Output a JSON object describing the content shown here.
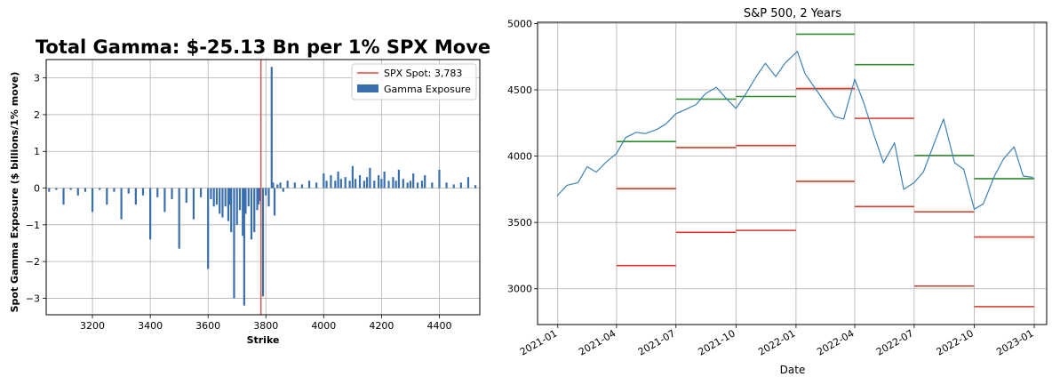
{
  "chart_data": [
    {
      "type": "bar",
      "title": "Total Gamma: $-25.13 Bn per 1% SPX Move",
      "xlabel": "Strike",
      "ylabel": "Spot Gamma Exposure ($ billions/1% move)",
      "xlim": [
        3040,
        4540
      ],
      "ylim": [
        -3.45,
        3.5
      ],
      "xticks": [
        3200,
        3400,
        3600,
        3800,
        4000,
        4200,
        4400
      ],
      "yticks": [
        {
          "value": 3,
          "label": "3"
        },
        {
          "value": 2,
          "label": "2"
        },
        {
          "value": 1,
          "label": "1"
        },
        {
          "value": 0,
          "label": "0"
        },
        {
          "value": -1,
          "label": "−1"
        },
        {
          "value": -2,
          "label": "−2"
        },
        {
          "value": -3,
          "label": "−3"
        }
      ],
      "grid": true,
      "bar_color": "#3a6fae",
      "spot_color": "#e8403a",
      "spot_value": 3783,
      "legend_position": "top-right",
      "legend": [
        {
          "label": "SPX Spot: 3,783",
          "kind": "line",
          "color": "#e8403a"
        },
        {
          "label": "Gamma Exposure",
          "kind": "patch",
          "color": "#3a6fae"
        }
      ],
      "series": [
        {
          "name": "Gamma Exposure",
          "x": [
            3050,
            3075,
            3100,
            3125,
            3150,
            3175,
            3200,
            3225,
            3250,
            3275,
            3300,
            3325,
            3350,
            3375,
            3400,
            3425,
            3450,
            3475,
            3500,
            3525,
            3550,
            3575,
            3600,
            3610,
            3620,
            3630,
            3640,
            3650,
            3660,
            3670,
            3675,
            3680,
            3690,
            3700,
            3710,
            3720,
            3725,
            3730,
            3740,
            3750,
            3760,
            3770,
            3775,
            3780,
            3790,
            3800,
            3810,
            3820,
            3825,
            3830,
            3840,
            3850,
            3860,
            3875,
            3900,
            3925,
            3950,
            3975,
            4000,
            4010,
            4025,
            4040,
            4050,
            4060,
            4075,
            4090,
            4100,
            4110,
            4125,
            4140,
            4150,
            4160,
            4175,
            4190,
            4200,
            4210,
            4225,
            4240,
            4250,
            4260,
            4275,
            4290,
            4300,
            4310,
            4325,
            4340,
            4350,
            4375,
            4400,
            4425,
            4450,
            4475,
            4500,
            4525
          ],
          "values": [
            -0.1,
            -0.05,
            -0.45,
            -0.05,
            -0.2,
            -0.1,
            -0.65,
            -0.05,
            -0.45,
            -0.1,
            -0.85,
            -0.15,
            -0.45,
            -0.2,
            -1.4,
            -0.25,
            -0.65,
            -0.3,
            -1.65,
            -0.4,
            -0.85,
            -0.25,
            -2.2,
            -0.3,
            -0.5,
            -0.45,
            -0.7,
            -0.8,
            -0.5,
            -0.9,
            -0.45,
            -1.2,
            -3.0,
            -1.0,
            -0.6,
            -1.3,
            -3.2,
            -0.7,
            -0.5,
            -1.4,
            -1.2,
            -0.6,
            -0.45,
            -0.35,
            -2.95,
            -0.2,
            -0.5,
            3.3,
            0.15,
            -0.75,
            0.1,
            0.15,
            -0.1,
            0.2,
            0.15,
            0.1,
            0.2,
            0.15,
            0.4,
            0.2,
            0.35,
            0.2,
            0.45,
            0.25,
            0.3,
            0.2,
            0.6,
            0.25,
            0.35,
            0.2,
            0.3,
            0.55,
            0.2,
            0.35,
            0.25,
            0.45,
            0.2,
            0.3,
            0.2,
            0.5,
            0.25,
            0.15,
            0.2,
            0.4,
            0.15,
            0.2,
            0.35,
            0.15,
            0.5,
            0.15,
            0.1,
            0.15,
            0.3,
            0.08
          ]
        }
      ]
    },
    {
      "type": "line",
      "title": "S&P 500, 2 Years",
      "xlabel": "Date",
      "ylabel": "",
      "xlim": [
        "2020-12-01",
        "2023-01-20"
      ],
      "ylim": [
        2730,
        5010
      ],
      "xticks": [
        "2021-01",
        "2021-04",
        "2021-07",
        "2021-10",
        "2022-01",
        "2022-04",
        "2022-07",
        "2022-10",
        "2023-01"
      ],
      "yticks": [
        3000,
        3500,
        4000,
        4500,
        5000
      ],
      "grid": true,
      "line_color": "#3b82b6",
      "upper_color": "#2e8b2e",
      "lower_color": "#d83a26",
      "series": [
        {
          "name": "S&P 500",
          "x": [
            "2020-12-31",
            "2021-01-15",
            "2021-02-01",
            "2021-02-15",
            "2021-03-01",
            "2021-03-15",
            "2021-04-01",
            "2021-04-15",
            "2021-05-01",
            "2021-05-15",
            "2021-06-01",
            "2021-06-15",
            "2021-07-01",
            "2021-07-15",
            "2021-08-01",
            "2021-08-15",
            "2021-09-01",
            "2021-09-15",
            "2021-10-01",
            "2021-10-15",
            "2021-11-01",
            "2021-11-15",
            "2021-12-01",
            "2021-12-15",
            "2022-01-03",
            "2022-01-15",
            "2022-02-01",
            "2022-02-15",
            "2022-03-01",
            "2022-03-15",
            "2022-04-01",
            "2022-04-15",
            "2022-05-01",
            "2022-05-15",
            "2022-06-01",
            "2022-06-15",
            "2022-07-01",
            "2022-07-15",
            "2022-08-01",
            "2022-08-15",
            "2022-09-01",
            "2022-09-15",
            "2022-10-01",
            "2022-10-15",
            "2022-11-01",
            "2022-11-15",
            "2022-12-01",
            "2022-12-15",
            "2022-12-30"
          ],
          "values": [
            3700,
            3780,
            3800,
            3920,
            3880,
            3950,
            4020,
            4140,
            4180,
            4170,
            4200,
            4240,
            4320,
            4350,
            4390,
            4470,
            4520,
            4440,
            4360,
            4460,
            4600,
            4700,
            4600,
            4700,
            4790,
            4620,
            4500,
            4400,
            4300,
            4280,
            4580,
            4400,
            4150,
            3950,
            4100,
            3750,
            3800,
            3880,
            4100,
            4280,
            3950,
            3900,
            3600,
            3640,
            3850,
            3980,
            4070,
            3850,
            3840
          ]
        }
      ],
      "segments": [
        {
          "start": "2021-04-01",
          "end": "2021-07-01",
          "upper": 4110,
          "lower": [
            3755,
            3175
          ]
        },
        {
          "start": "2021-07-01",
          "end": "2021-10-01",
          "upper": 4430,
          "lower": [
            4065,
            3425
          ]
        },
        {
          "start": "2021-10-01",
          "end": "2022-01-01",
          "upper": 4450,
          "lower": [
            4080,
            3440
          ]
        },
        {
          "start": "2022-01-01",
          "end": "2022-04-01",
          "upper": 4920,
          "lower": [
            4510,
            3810
          ]
        },
        {
          "start": "2022-04-01",
          "end": "2022-07-01",
          "upper": 4690,
          "lower": [
            4285,
            3620
          ]
        },
        {
          "start": "2022-07-01",
          "end": "2022-10-01",
          "upper": 4005,
          "lower": [
            3580,
            3020
          ]
        },
        {
          "start": "2022-10-01",
          "end": "2023-01-01",
          "upper": 3830,
          "lower": [
            3390,
            2865
          ]
        }
      ]
    }
  ]
}
